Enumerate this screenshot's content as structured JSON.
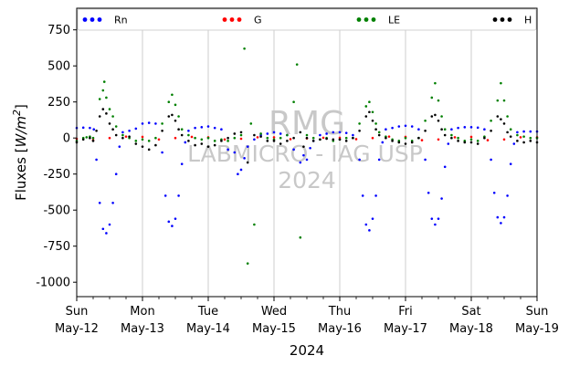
{
  "chart_data": {
    "type": "scatter",
    "xlabel": "2024",
    "ylabel": "Fluxes [W/m2]",
    "ylabel_parts": {
      "base": "Fluxes [",
      "unit": "W/m",
      "sup": "2",
      "close": "]"
    },
    "ylim": [
      -1100,
      900
    ],
    "yticks": [
      750,
      500,
      250,
      0,
      -250,
      -500,
      -750,
      -1000
    ],
    "xlim": [
      0,
      7
    ],
    "xticks": [
      {
        "x": 0,
        "day": "Sun",
        "date": "May-12"
      },
      {
        "x": 1,
        "day": "Mon",
        "date": "May-13"
      },
      {
        "x": 2,
        "day": "Tue",
        "date": "May-14"
      },
      {
        "x": 3,
        "day": "Wed",
        "date": "May-15"
      },
      {
        "x": 4,
        "day": "Thu",
        "date": "May-16"
      },
      {
        "x": 5,
        "day": "Fri",
        "date": "May-17"
      },
      {
        "x": 6,
        "day": "Sat",
        "date": "May-18"
      },
      {
        "x": 7,
        "day": "Sun",
        "date": "May-19"
      }
    ],
    "grid": "vertical",
    "legend_position": "top",
    "series": [
      {
        "name": "Rn",
        "color": "#0000ff",
        "points": [
          [
            0.0,
            70
          ],
          [
            0.1,
            72
          ],
          [
            0.2,
            70
          ],
          [
            0.26,
            60
          ],
          [
            0.3,
            -150
          ],
          [
            0.35,
            -450
          ],
          [
            0.4,
            -630
          ],
          [
            0.45,
            -660
          ],
          [
            0.5,
            -600
          ],
          [
            0.55,
            -450
          ],
          [
            0.6,
            -250
          ],
          [
            0.65,
            -60
          ],
          [
            0.7,
            40
          ],
          [
            0.8,
            50
          ],
          [
            0.9,
            65
          ],
          [
            1.0,
            100
          ],
          [
            1.1,
            105
          ],
          [
            1.2,
            100
          ],
          [
            1.3,
            -100
          ],
          [
            1.35,
            -400
          ],
          [
            1.4,
            -580
          ],
          [
            1.45,
            -610
          ],
          [
            1.5,
            -560
          ],
          [
            1.55,
            -400
          ],
          [
            1.6,
            -180
          ],
          [
            1.65,
            -30
          ],
          [
            1.7,
            50
          ],
          [
            1.8,
            70
          ],
          [
            1.9,
            75
          ],
          [
            2.0,
            80
          ],
          [
            2.1,
            70
          ],
          [
            2.2,
            60
          ],
          [
            2.3,
            -80
          ],
          [
            2.4,
            -100
          ],
          [
            2.45,
            -250
          ],
          [
            2.5,
            -220
          ],
          [
            2.55,
            -140
          ],
          [
            2.6,
            -60
          ],
          [
            2.7,
            -10
          ],
          [
            2.8,
            20
          ],
          [
            2.9,
            30
          ],
          [
            3.0,
            40
          ],
          [
            3.1,
            30
          ],
          [
            3.2,
            20
          ],
          [
            3.3,
            -80
          ],
          [
            3.4,
            -170
          ],
          [
            3.45,
            -120
          ],
          [
            3.5,
            -150
          ],
          [
            3.55,
            -70
          ],
          [
            3.6,
            -20
          ],
          [
            3.7,
            20
          ],
          [
            3.8,
            30
          ],
          [
            3.9,
            40
          ],
          [
            4.0,
            40
          ],
          [
            4.1,
            35
          ],
          [
            4.2,
            20
          ],
          [
            4.3,
            -150
          ],
          [
            4.35,
            -400
          ],
          [
            4.4,
            -600
          ],
          [
            4.45,
            -640
          ],
          [
            4.5,
            -560
          ],
          [
            4.55,
            -400
          ],
          [
            4.6,
            -150
          ],
          [
            4.65,
            -30
          ],
          [
            4.7,
            60
          ],
          [
            4.8,
            70
          ],
          [
            4.9,
            80
          ],
          [
            5.0,
            85
          ],
          [
            5.1,
            80
          ],
          [
            5.2,
            60
          ],
          [
            5.3,
            -150
          ],
          [
            5.35,
            -380
          ],
          [
            5.4,
            -560
          ],
          [
            5.45,
            -600
          ],
          [
            5.5,
            -560
          ],
          [
            5.55,
            -420
          ],
          [
            5.6,
            -200
          ],
          [
            5.65,
            -40
          ],
          [
            5.7,
            60
          ],
          [
            5.8,
            70
          ],
          [
            5.9,
            75
          ],
          [
            6.0,
            75
          ],
          [
            6.1,
            72
          ],
          [
            6.2,
            60
          ],
          [
            6.3,
            -150
          ],
          [
            6.35,
            -380
          ],
          [
            6.4,
            -550
          ],
          [
            6.45,
            -590
          ],
          [
            6.5,
            -550
          ],
          [
            6.55,
            -400
          ],
          [
            6.6,
            -180
          ],
          [
            6.65,
            -40
          ],
          [
            6.7,
            40
          ],
          [
            6.8,
            45
          ],
          [
            6.9,
            45
          ],
          [
            7.0,
            45
          ]
        ]
      },
      {
        "name": "G",
        "color": "#ff0000",
        "points": [
          [
            0.0,
            -5
          ],
          [
            0.25,
            -15
          ],
          [
            0.5,
            0
          ],
          [
            0.75,
            10
          ],
          [
            1.0,
            8
          ],
          [
            1.25,
            -10
          ],
          [
            1.5,
            0
          ],
          [
            1.75,
            8
          ],
          [
            2.0,
            5
          ],
          [
            2.25,
            -10
          ],
          [
            2.5,
            -5
          ],
          [
            2.75,
            5
          ],
          [
            3.0,
            5
          ],
          [
            3.25,
            -8
          ],
          [
            3.5,
            -3
          ],
          [
            3.75,
            2
          ],
          [
            4.0,
            2
          ],
          [
            4.25,
            -8
          ],
          [
            4.5,
            0
          ],
          [
            4.75,
            10
          ],
          [
            5.0,
            8
          ],
          [
            5.25,
            -15
          ],
          [
            5.5,
            -10
          ],
          [
            5.75,
            5
          ],
          [
            6.0,
            8
          ],
          [
            6.25,
            -15
          ],
          [
            6.5,
            -10
          ],
          [
            6.75,
            5
          ],
          [
            7.0,
            5
          ]
        ]
      },
      {
        "name": "LE",
        "color": "#008000",
        "points": [
          [
            0.0,
            -20
          ],
          [
            0.1,
            0
          ],
          [
            0.15,
            5
          ],
          [
            0.2,
            10
          ],
          [
            0.25,
            0
          ],
          [
            0.35,
            270
          ],
          [
            0.4,
            330
          ],
          [
            0.42,
            390
          ],
          [
            0.45,
            280
          ],
          [
            0.5,
            200
          ],
          [
            0.55,
            150
          ],
          [
            0.6,
            80
          ],
          [
            0.7,
            20
          ],
          [
            0.8,
            0
          ],
          [
            0.9,
            -20
          ],
          [
            1.0,
            -10
          ],
          [
            1.1,
            -20
          ],
          [
            1.2,
            0
          ],
          [
            1.3,
            100
          ],
          [
            1.4,
            250
          ],
          [
            1.45,
            300
          ],
          [
            1.5,
            230
          ],
          [
            1.55,
            150
          ],
          [
            1.6,
            60
          ],
          [
            1.7,
            20
          ],
          [
            1.8,
            0
          ],
          [
            1.9,
            -10
          ],
          [
            2.0,
            0
          ],
          [
            2.1,
            -20
          ],
          [
            2.2,
            -10
          ],
          [
            2.3,
            -20
          ],
          [
            2.4,
            0
          ],
          [
            2.5,
            20
          ],
          [
            2.55,
            620
          ],
          [
            2.6,
            -870
          ],
          [
            2.65,
            100
          ],
          [
            2.7,
            -600
          ],
          [
            2.8,
            30
          ],
          [
            2.9,
            0
          ],
          [
            3.0,
            -10
          ],
          [
            3.1,
            0
          ],
          [
            3.2,
            20
          ],
          [
            3.3,
            250
          ],
          [
            3.35,
            510
          ],
          [
            3.4,
            -690
          ],
          [
            3.5,
            20
          ],
          [
            3.6,
            0
          ],
          [
            3.7,
            -10
          ],
          [
            3.8,
            0
          ],
          [
            3.9,
            -20
          ],
          [
            4.0,
            -10
          ],
          [
            4.1,
            0
          ],
          [
            4.2,
            0
          ],
          [
            4.3,
            100
          ],
          [
            4.4,
            220
          ],
          [
            4.45,
            250
          ],
          [
            4.5,
            180
          ],
          [
            4.55,
            100
          ],
          [
            4.6,
            40
          ],
          [
            4.7,
            10
          ],
          [
            4.8,
            -10
          ],
          [
            4.9,
            -20
          ],
          [
            5.0,
            0
          ],
          [
            5.1,
            -20
          ],
          [
            5.2,
            0
          ],
          [
            5.3,
            120
          ],
          [
            5.4,
            280
          ],
          [
            5.45,
            380
          ],
          [
            5.5,
            260
          ],
          [
            5.55,
            150
          ],
          [
            5.6,
            60
          ],
          [
            5.7,
            20
          ],
          [
            5.8,
            0
          ],
          [
            5.9,
            -20
          ],
          [
            6.0,
            -10
          ],
          [
            6.1,
            -20
          ],
          [
            6.2,
            10
          ],
          [
            6.3,
            120
          ],
          [
            6.4,
            260
          ],
          [
            6.45,
            380
          ],
          [
            6.5,
            260
          ],
          [
            6.55,
            150
          ],
          [
            6.6,
            60
          ],
          [
            6.7,
            20
          ],
          [
            6.8,
            10
          ],
          [
            6.9,
            0
          ],
          [
            7.0,
            0
          ]
        ]
      },
      {
        "name": "H",
        "color": "#000000",
        "points": [
          [
            0.0,
            -30
          ],
          [
            0.1,
            -10
          ],
          [
            0.2,
            0
          ],
          [
            0.25,
            -20
          ],
          [
            0.3,
            50
          ],
          [
            0.35,
            150
          ],
          [
            0.4,
            200
          ],
          [
            0.45,
            170
          ],
          [
            0.5,
            100
          ],
          [
            0.55,
            60
          ],
          [
            0.6,
            20
          ],
          [
            0.7,
            0
          ],
          [
            0.8,
            10
          ],
          [
            0.9,
            -40
          ],
          [
            1.0,
            -60
          ],
          [
            1.1,
            -80
          ],
          [
            1.2,
            -50
          ],
          [
            1.3,
            50
          ],
          [
            1.4,
            150
          ],
          [
            1.45,
            160
          ],
          [
            1.5,
            120
          ],
          [
            1.55,
            60
          ],
          [
            1.6,
            20
          ],
          [
            1.7,
            -20
          ],
          [
            1.8,
            -50
          ],
          [
            1.9,
            -40
          ],
          [
            2.0,
            -60
          ],
          [
            2.1,
            -50
          ],
          [
            2.2,
            -20
          ],
          [
            2.3,
            0
          ],
          [
            2.4,
            30
          ],
          [
            2.5,
            40
          ],
          [
            2.6,
            -170
          ],
          [
            2.7,
            20
          ],
          [
            2.8,
            10
          ],
          [
            2.9,
            -20
          ],
          [
            3.0,
            -20
          ],
          [
            3.1,
            -40
          ],
          [
            3.2,
            -20
          ],
          [
            3.3,
            0
          ],
          [
            3.4,
            40
          ],
          [
            3.45,
            -60
          ],
          [
            3.5,
            0
          ],
          [
            3.6,
            -20
          ],
          [
            3.7,
            -10
          ],
          [
            3.8,
            -5
          ],
          [
            3.9,
            -10
          ],
          [
            4.0,
            -10
          ],
          [
            4.1,
            -20
          ],
          [
            4.2,
            0
          ],
          [
            4.3,
            50
          ],
          [
            4.4,
            150
          ],
          [
            4.45,
            180
          ],
          [
            4.5,
            120
          ],
          [
            4.55,
            60
          ],
          [
            4.6,
            20
          ],
          [
            4.7,
            0
          ],
          [
            4.8,
            -20
          ],
          [
            4.9,
            -30
          ],
          [
            5.0,
            -40
          ],
          [
            5.1,
            -30
          ],
          [
            5.2,
            0
          ],
          [
            5.3,
            50
          ],
          [
            5.4,
            150
          ],
          [
            5.45,
            160
          ],
          [
            5.5,
            120
          ],
          [
            5.55,
            60
          ],
          [
            5.6,
            20
          ],
          [
            5.7,
            0
          ],
          [
            5.8,
            -20
          ],
          [
            5.9,
            -30
          ],
          [
            6.0,
            -30
          ],
          [
            6.1,
            -40
          ],
          [
            6.2,
            0
          ],
          [
            6.3,
            50
          ],
          [
            6.4,
            150
          ],
          [
            6.45,
            130
          ],
          [
            6.5,
            100
          ],
          [
            6.55,
            40
          ],
          [
            6.6,
            10
          ],
          [
            6.7,
            -20
          ],
          [
            6.8,
            -30
          ],
          [
            6.9,
            -20
          ],
          [
            7.0,
            -30
          ]
        ]
      }
    ],
    "watermark": {
      "line1": "RMG",
      "line2": "LABMICRO - IAG USP",
      "line3": "2024"
    }
  }
}
